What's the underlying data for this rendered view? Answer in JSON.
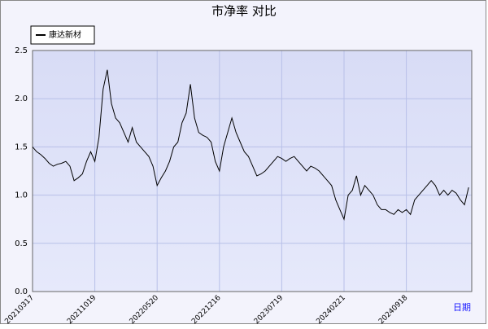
{
  "chart_data": {
    "type": "line",
    "title": "市净率  对比",
    "x_label": "日期",
    "categories": [
      "20210317",
      null,
      null,
      null,
      null,
      null,
      null,
      null,
      null,
      null,
      null,
      null,
      null,
      null,
      null,
      "20211019",
      null,
      null,
      null,
      null,
      null,
      null,
      null,
      null,
      null,
      null,
      null,
      null,
      null,
      null,
      "20220520",
      null,
      null,
      null,
      null,
      null,
      null,
      null,
      null,
      null,
      null,
      null,
      null,
      null,
      null,
      "20221216",
      null,
      null,
      null,
      null,
      null,
      null,
      null,
      null,
      null,
      null,
      null,
      null,
      null,
      null,
      "20230719",
      null,
      null,
      null,
      null,
      null,
      null,
      null,
      null,
      null,
      null,
      null,
      null,
      null,
      null,
      "20240221",
      null,
      null,
      null,
      null,
      null,
      null,
      null,
      null,
      null,
      null,
      null,
      null,
      null,
      null,
      "20240918",
      null,
      null,
      null,
      null,
      null,
      null,
      null,
      null,
      null,
      null,
      null,
      null,
      null,
      null,
      null
    ],
    "series": [
      {
        "name": "康达新材",
        "color": "#000000",
        "values": [
          1.5,
          1.45,
          1.42,
          1.38,
          1.33,
          1.3,
          1.32,
          1.33,
          1.35,
          1.3,
          1.15,
          1.18,
          1.22,
          1.35,
          1.45,
          1.35,
          1.6,
          2.1,
          2.3,
          1.95,
          1.8,
          1.75,
          1.65,
          1.55,
          1.7,
          1.55,
          1.5,
          1.45,
          1.4,
          1.3,
          1.1,
          1.18,
          1.25,
          1.35,
          1.5,
          1.55,
          1.75,
          1.85,
          2.15,
          1.8,
          1.65,
          1.62,
          1.6,
          1.55,
          1.35,
          1.25,
          1.5,
          1.65,
          1.8,
          1.65,
          1.55,
          1.45,
          1.4,
          1.3,
          1.2,
          1.22,
          1.25,
          1.3,
          1.35,
          1.4,
          1.38,
          1.35,
          1.38,
          1.4,
          1.35,
          1.3,
          1.25,
          1.3,
          1.28,
          1.25,
          1.2,
          1.15,
          1.1,
          0.95,
          0.85,
          0.75,
          1.0,
          1.05,
          1.2,
          1.0,
          1.1,
          1.05,
          1.0,
          0.9,
          0.85,
          0.85,
          0.82,
          0.8,
          0.85,
          0.82,
          0.85,
          0.8,
          0.95,
          1.0,
          1.05,
          1.1,
          1.15,
          1.1,
          1.0,
          1.05,
          1.0,
          1.05,
          1.02,
          0.95,
          0.9,
          1.08
        ]
      }
    ],
    "ylim": [
      0,
      2.5
    ],
    "yticks": [
      {
        "value": 0,
        "label": "0.0"
      },
      0.5,
      {
        "value": 1,
        "label": "1.0"
      },
      1.5,
      {
        "value": 2,
        "label": "2.0"
      },
      2.5
    ],
    "grid": true,
    "legend": "top-left"
  }
}
